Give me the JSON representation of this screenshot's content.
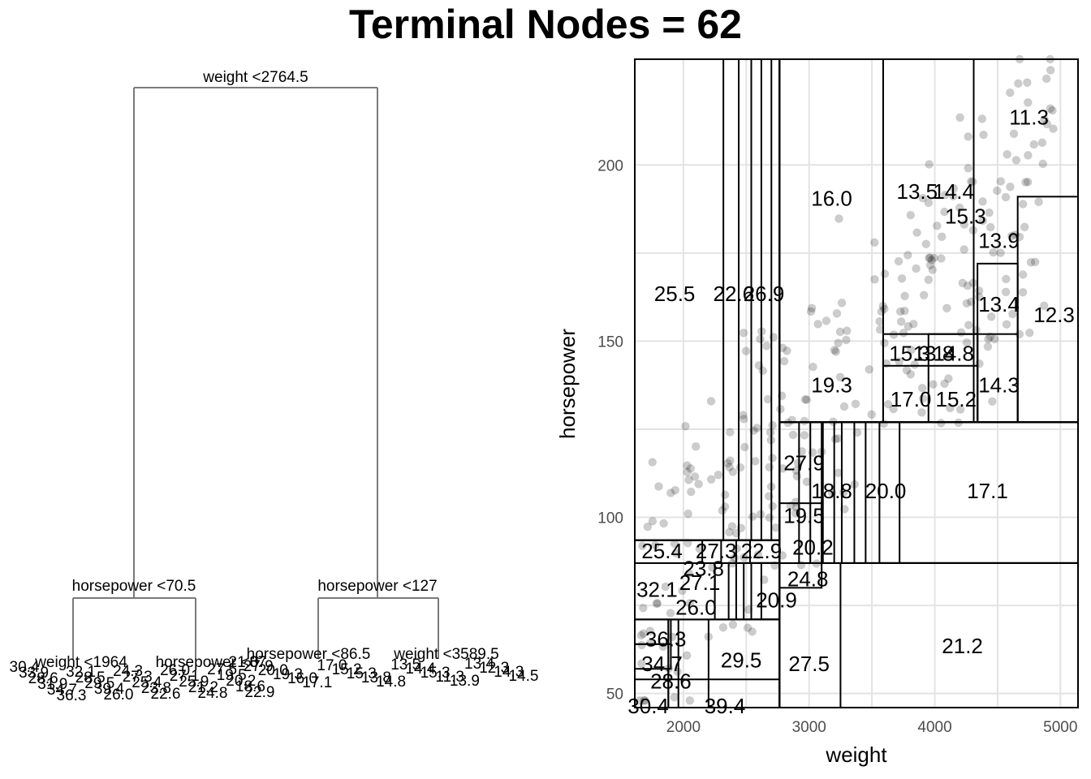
{
  "title": "Terminal Nodes = 62",
  "chart_data": [
    {
      "type": "tree",
      "splits": [
        {
          "id": "root",
          "label": "weight <2764.5"
        },
        {
          "id": "left",
          "label": "horsepower <70.5"
        },
        {
          "id": "right",
          "label": "horsepower <127"
        },
        {
          "id": "ll",
          "label": "weight <1964"
        },
        {
          "id": "lr",
          "label": "horsepower <87"
        },
        {
          "id": "rl",
          "label": "horsepower <86.5"
        },
        {
          "id": "rr",
          "label": "weight <3589.5"
        }
      ],
      "leaf_values": [
        "30.4",
        "33.9",
        "28.6",
        "31.9",
        "34.7",
        "36.3",
        "32.1",
        "28.5",
        "29.5",
        "39.4",
        "26.0",
        "24.3",
        "27.3",
        "25.4",
        "23.8",
        "22.6",
        "26.0",
        "27.1",
        "25.9",
        "21.2",
        "24.8",
        "27.5",
        "19.5",
        "20.2",
        "18.6",
        "22.9",
        "21.0",
        "27.9",
        "20.0",
        "19.3",
        "16.0",
        "17.1",
        "17.0",
        "15.2",
        "15.3",
        "13.8",
        "14.8",
        "13.5",
        "14.4",
        "15.3",
        "11.3",
        "13.9",
        "13.4",
        "12.3",
        "14.3",
        "14.5"
      ]
    },
    {
      "type": "scatter",
      "xlabel": "weight",
      "ylabel": "horsepower",
      "xlim": [
        1613,
        5140
      ],
      "ylim": [
        46,
        230
      ],
      "xticks": [
        2000,
        3000,
        4000,
        5000
      ],
      "yticks": [
        50,
        100,
        150,
        200
      ],
      "grid": true,
      "regions": [
        {
          "x0": 2764.5,
          "x1": 5140,
          "y0": 127,
          "y1": 230
        },
        {
          "x0": 2764.5,
          "x1": 5140,
          "y0": 46,
          "y1": 127
        },
        {
          "x0": 1613,
          "x1": 2764.5,
          "y0": 93.5,
          "y1": 230
        },
        {
          "x0": 1613,
          "x1": 2764.5,
          "y0": 46,
          "y1": 93.5
        }
      ],
      "region_labels": [
        {
          "text": "25.5",
          "x": 1930,
          "y": 163
        },
        {
          "text": "22.6",
          "x": 2400,
          "y": 163
        },
        {
          "text": "26.9",
          "x": 2640,
          "y": 163
        },
        {
          "text": "16.0",
          "x": 3180,
          "y": 190
        },
        {
          "text": "19.3",
          "x": 3180,
          "y": 137
        },
        {
          "text": "13.5",
          "x": 3860,
          "y": 192
        },
        {
          "text": "14.4",
          "x": 4150,
          "y": 192
        },
        {
          "text": "15.3",
          "x": 4245,
          "y": 185
        },
        {
          "text": "11.3",
          "x": 4750,
          "y": 213
        },
        {
          "text": "13.9",
          "x": 4510,
          "y": 178
        },
        {
          "text": "13.4",
          "x": 4510,
          "y": 160
        },
        {
          "text": "12.3",
          "x": 4950,
          "y": 157
        },
        {
          "text": "15.3",
          "x": 3800,
          "y": 146
        },
        {
          "text": "13.8",
          "x": 3990,
          "y": 146
        },
        {
          "text": "14.8",
          "x": 4150,
          "y": 146
        },
        {
          "text": "14.3",
          "x": 4510,
          "y": 137
        },
        {
          "text": "17.0",
          "x": 3810,
          "y": 133
        },
        {
          "text": "15.2",
          "x": 4170,
          "y": 133
        },
        {
          "text": "17.1",
          "x": 4420,
          "y": 107
        },
        {
          "text": "21.2",
          "x": 4220,
          "y": 63
        },
        {
          "text": "27.9",
          "x": 2960,
          "y": 115
        },
        {
          "text": "20.0",
          "x": 3610,
          "y": 107
        },
        {
          "text": "18.8",
          "x": 3180,
          "y": 107
        },
        {
          "text": "19.5",
          "x": 2960,
          "y": 100
        },
        {
          "text": "20.2",
          "x": 3030,
          "y": 91
        },
        {
          "text": "24.8",
          "x": 2990,
          "y": 82
        },
        {
          "text": "27.5",
          "x": 3000,
          "y": 58
        },
        {
          "text": "25.4",
          "x": 1830,
          "y": 90
        },
        {
          "text": "27.3",
          "x": 2260,
          "y": 90
        },
        {
          "text": "22.9",
          "x": 2620,
          "y": 90
        },
        {
          "text": "23.8",
          "x": 2160,
          "y": 85
        },
        {
          "text": "32.1",
          "x": 1790,
          "y": 79
        },
        {
          "text": "27.1",
          "x": 2130,
          "y": 81
        },
        {
          "text": "20.9",
          "x": 2740,
          "y": 76
        },
        {
          "text": "26.0",
          "x": 2100,
          "y": 74
        },
        {
          "text": "29.5",
          "x": 2460,
          "y": 59
        },
        {
          "text": "36.3",
          "x": 1860,
          "y": 65
        },
        {
          "text": "34.7",
          "x": 1830,
          "y": 58
        },
        {
          "text": "28.6",
          "x": 1900,
          "y": 53
        },
        {
          "text": "30.4",
          "x": 1720,
          "y": 46
        },
        {
          "text": "39.4",
          "x": 2330,
          "y": 46
        }
      ]
    }
  ]
}
